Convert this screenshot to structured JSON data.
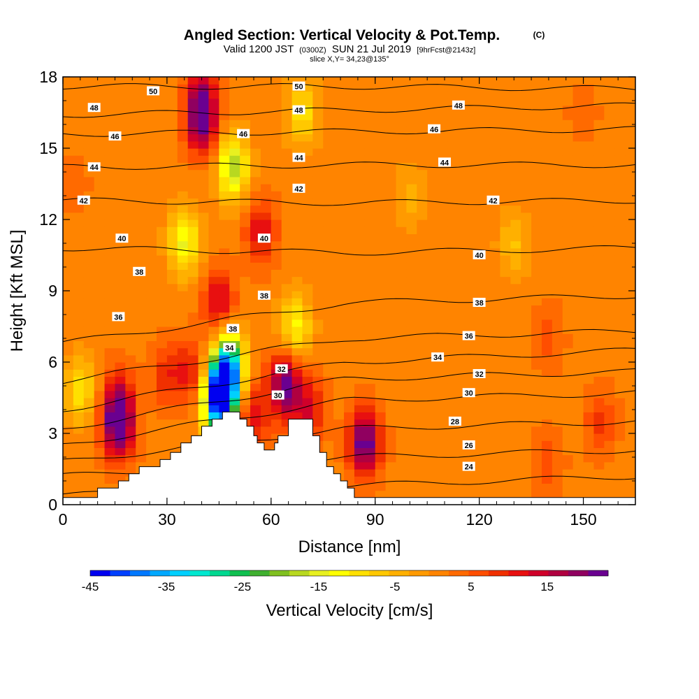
{
  "chart_data": {
    "type": "heatmap",
    "title": "Angled Section: Vertical Velocity & Pot.Temp.",
    "title_mark": "(C)",
    "subtitle": {
      "valid": "Valid 1200 JST",
      "utc": "(0300Z)",
      "date": "SUN 21 Jul 2019",
      "forecast": "[9hrFcst@2143z]"
    },
    "slice": "slice X,Y= 34,23@135°",
    "xlabel": "Distance [nm]",
    "ylabel": "Height [Kft MSL]",
    "xlim": [
      0,
      165
    ],
    "ylim": [
      0,
      18
    ],
    "xticks": [
      "0",
      "30",
      "60",
      "90",
      "120",
      "150"
    ],
    "yticks": [
      "0",
      "3",
      "6",
      "9",
      "12",
      "15",
      "18"
    ],
    "colorbar": {
      "label": "Vertical Velocity [cm/s]",
      "min": -45,
      "max": 23,
      "tick_labels": [
        "-45",
        "-35",
        "-25",
        "-15",
        "-5",
        "5",
        "15"
      ],
      "colors": [
        "#0000f0",
        "#0040ff",
        "#0078ff",
        "#00a8ff",
        "#00d0ff",
        "#00e8d0",
        "#00d890",
        "#10c050",
        "#40b030",
        "#80c020",
        "#b8d820",
        "#e8f020",
        "#ffff00",
        "#ffe000",
        "#ffc800",
        "#ffb000",
        "#ff9a00",
        "#ff8400",
        "#ff6a00",
        "#ff4e00",
        "#f03000",
        "#e81010",
        "#d0002a",
        "#b00040",
        "#900060",
        "#6a0090"
      ]
    },
    "terrain": [
      [
        0,
        0.3
      ],
      [
        10,
        0.3
      ],
      [
        10,
        0.7
      ],
      [
        16,
        0.7
      ],
      [
        16,
        1.0
      ],
      [
        19,
        1.0
      ],
      [
        19,
        1.3
      ],
      [
        22,
        1.3
      ],
      [
        22,
        1.6
      ],
      [
        28,
        1.6
      ],
      [
        28,
        1.9
      ],
      [
        31,
        1.9
      ],
      [
        31,
        2.2
      ],
      [
        34,
        2.2
      ],
      [
        34,
        2.6
      ],
      [
        37,
        2.6
      ],
      [
        37,
        2.9
      ],
      [
        40,
        2.9
      ],
      [
        40,
        3.3
      ],
      [
        43,
        3.3
      ],
      [
        43,
        3.6
      ],
      [
        46,
        3.6
      ],
      [
        46,
        3.9
      ],
      [
        51,
        3.9
      ],
      [
        51,
        3.6
      ],
      [
        53,
        3.6
      ],
      [
        53,
        3.3
      ],
      [
        55,
        3.3
      ],
      [
        55,
        2.9
      ],
      [
        56,
        2.9
      ],
      [
        56,
        2.6
      ],
      [
        58,
        2.6
      ],
      [
        58,
        2.3
      ],
      [
        61,
        2.3
      ],
      [
        61,
        2.6
      ],
      [
        62,
        2.6
      ],
      [
        62,
        2.9
      ],
      [
        65,
        2.9
      ],
      [
        65,
        3.6
      ],
      [
        72,
        3.6
      ],
      [
        72,
        2.9
      ],
      [
        74,
        2.9
      ],
      [
        74,
        2.2
      ],
      [
        76,
        2.2
      ],
      [
        76,
        1.6
      ],
      [
        78,
        1.6
      ],
      [
        78,
        1.3
      ],
      [
        80,
        1.3
      ],
      [
        80,
        1.0
      ],
      [
        82,
        1.0
      ],
      [
        82,
        0.7
      ],
      [
        84,
        0.7
      ],
      [
        84,
        0.3
      ],
      [
        165,
        0.3
      ]
    ],
    "vertical_velocity_cells": [
      {
        "x": 16,
        "y": 3.3,
        "value": 22
      },
      {
        "x": 16,
        "y": 4.5,
        "value": 12
      },
      {
        "x": 30,
        "y": 5.5,
        "value": 9
      },
      {
        "x": 37,
        "y": 5.6,
        "value": 10
      },
      {
        "x": 40,
        "y": 16.2,
        "value": 22
      },
      {
        "x": 40,
        "y": 17.5,
        "value": 10
      },
      {
        "x": 45,
        "y": 4.4,
        "value": -40
      },
      {
        "x": 47,
        "y": 5.2,
        "value": -25
      },
      {
        "x": 48,
        "y": 6.2,
        "value": -18
      },
      {
        "x": 49,
        "y": 14.2,
        "value": -18
      },
      {
        "x": 35,
        "y": 11.0,
        "value": -14
      },
      {
        "x": 45,
        "y": 8.5,
        "value": 14
      },
      {
        "x": 57,
        "y": 11.5,
        "value": 12
      },
      {
        "x": 55,
        "y": 3.8,
        "value": 12
      },
      {
        "x": 64,
        "y": 5.0,
        "value": 22
      },
      {
        "x": 71,
        "y": 4.0,
        "value": 12
      },
      {
        "x": 69,
        "y": 16.5,
        "value": -10
      },
      {
        "x": 67,
        "y": 7.5,
        "value": -12
      },
      {
        "x": 87,
        "y": 2.6,
        "value": 23
      },
      {
        "x": 140,
        "y": 7.0,
        "value": 6
      },
      {
        "x": 140,
        "y": 1.8,
        "value": 6
      },
      {
        "x": 150,
        "y": 16.5,
        "value": 4
      },
      {
        "x": 5,
        "y": 4.8,
        "value": -10
      },
      {
        "x": 130,
        "y": 11.0,
        "value": -6
      },
      {
        "x": 100,
        "y": 13.0,
        "value": -4
      },
      {
        "x": 3,
        "y": 13.5,
        "value": 4
      },
      {
        "x": 155,
        "y": 3.5,
        "value": 8
      }
    ],
    "isentropes": [
      {
        "label": "24",
        "y_left": 0.4,
        "y_mid": 0.8,
        "y_right": 1.2,
        "label_x": 117,
        "label_y": 1.6
      },
      {
        "label": "26",
        "y_left": 1.2,
        "y_mid": 2.0,
        "y_right": 2.3,
        "label_x": 117,
        "label_y": 2.5
      },
      {
        "label": "28",
        "y_left": 1.8,
        "y_mid": 3.2,
        "y_right": 3.5,
        "label_x": 113,
        "label_y": 3.5
      },
      {
        "label": "30",
        "y_left": 2.5,
        "y_mid": 4.4,
        "y_right": 4.7,
        "label_x": 117,
        "label_y": 4.7
      },
      {
        "label": "32",
        "y_left": 3.2,
        "y_mid": 5.3,
        "y_right": 5.6,
        "label_x": 120,
        "label_y": 5.5
      },
      {
        "label": "34",
        "y_left": 4.0,
        "y_mid": 6.0,
        "y_right": 6.5,
        "label_x": 108,
        "label_y": 6.2
      },
      {
        "label": "36",
        "y_left": 5.2,
        "y_mid": 7.0,
        "y_right": 7.3,
        "label_x": 117,
        "label_y": 7.1
      },
      {
        "label": "38",
        "y_left": 6.8,
        "y_mid": 8.5,
        "y_right": 8.8,
        "label_x": 120,
        "label_y": 8.5
      },
      {
        "label": "40",
        "y_left": 10.8,
        "y_mid": 10.6,
        "y_right": 10.8,
        "label_x": 120,
        "label_y": 10.5
      },
      {
        "label": "42",
        "y_left": 12.8,
        "y_mid": 12.7,
        "y_right": 12.8,
        "label_x": 124,
        "label_y": 12.8
      },
      {
        "label": "44",
        "y_left": 14.2,
        "y_mid": 14.3,
        "y_right": 14.3,
        "label_x": 110,
        "label_y": 14.4
      },
      {
        "label": "46",
        "y_left": 15.6,
        "y_mid": 15.7,
        "y_right": 15.8,
        "label_x": 107,
        "label_y": 15.8
      },
      {
        "label": "48",
        "y_left": 16.4,
        "y_mid": 16.6,
        "y_right": 16.8,
        "label_x": 114,
        "label_y": 16.8
      },
      {
        "label": "50",
        "y_left": 17.6,
        "y_mid": 17.6,
        "y_right": 17.5,
        "label_x": 68,
        "label_y": 17.6
      }
    ],
    "extra_contour_labels": [
      {
        "label": "50",
        "x": 26,
        "y": 17.4
      },
      {
        "label": "48",
        "x": 9,
        "y": 16.7
      },
      {
        "label": "46",
        "x": 15,
        "y": 15.5
      },
      {
        "label": "44",
        "x": 9,
        "y": 14.2
      },
      {
        "label": "42",
        "x": 6,
        "y": 12.8
      },
      {
        "label": "40",
        "x": 17,
        "y": 11.2
      },
      {
        "label": "38",
        "x": 22,
        "y": 9.8
      },
      {
        "label": "36",
        "x": 16,
        "y": 7.9
      },
      {
        "label": "38",
        "x": 49,
        "y": 7.4
      },
      {
        "label": "34",
        "x": 48,
        "y": 6.6
      },
      {
        "label": "32",
        "x": 63,
        "y": 5.7
      },
      {
        "label": "30",
        "x": 62,
        "y": 4.6
      },
      {
        "label": "38",
        "x": 58,
        "y": 8.8
      },
      {
        "label": "40",
        "x": 58,
        "y": 11.2
      },
      {
        "label": "42",
        "x": 68,
        "y": 13.3
      },
      {
        "label": "44",
        "x": 68,
        "y": 14.6
      },
      {
        "label": "46",
        "x": 52,
        "y": 15.6
      },
      {
        "label": "48",
        "x": 68,
        "y": 16.6
      }
    ]
  }
}
